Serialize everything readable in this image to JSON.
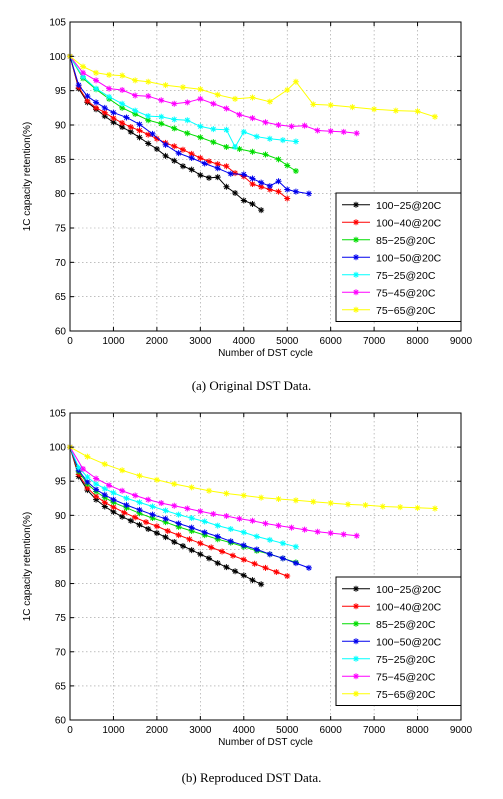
{
  "chart_data": [
    {
      "type": "line",
      "xlabel": "Number of DST cycle",
      "ylabel": "1C capacity retention(%)",
      "xlim": [
        0,
        9000
      ],
      "ylim": [
        60,
        105
      ],
      "xticks": [
        "0",
        "1000",
        "2000",
        "3000",
        "4000",
        "5000",
        "6000",
        "7000",
        "8000",
        "9000"
      ],
      "yticks": [
        "60",
        "65",
        "70",
        "75",
        "80",
        "85",
        "90",
        "95",
        "100",
        "105"
      ],
      "grid": true,
      "legend_position": "bottom-right",
      "marker": "star",
      "caption": "(a) Original DST Data.",
      "series": [
        {
          "name": "100−25@20C",
          "color": "#000000",
          "x": [
            0,
            200,
            400,
            600,
            800,
            1000,
            1200,
            1400,
            1600,
            1800,
            2000,
            2200,
            2400,
            2600,
            2800,
            3000,
            3200,
            3400,
            3600,
            3800,
            4000,
            4200,
            4400
          ],
          "y": [
            100,
            95.3,
            93.3,
            92.3,
            91.3,
            90.4,
            89.7,
            89.0,
            88.2,
            87.3,
            86.5,
            85.5,
            84.8,
            84.0,
            83.5,
            82.7,
            82.3,
            82.4,
            81.0,
            80.1,
            79.0,
            78.5,
            77.6
          ]
        },
        {
          "name": "100−40@20C",
          "color": "#ff0000",
          "x": [
            0,
            200,
            400,
            600,
            800,
            1000,
            1200,
            1400,
            1600,
            1800,
            2000,
            2200,
            2400,
            2600,
            2800,
            3000,
            3200,
            3400,
            3600,
            3800,
            4000,
            4200,
            4400,
            4600,
            4800,
            5000
          ],
          "y": [
            100,
            95.5,
            93.5,
            92.5,
            91.8,
            91.0,
            90.3,
            89.7,
            89.2,
            88.6,
            88.0,
            87.4,
            86.9,
            86.4,
            85.8,
            85.2,
            84.7,
            84.3,
            84.0,
            83.0,
            82.5,
            81.4,
            81.0,
            80.6,
            80.3,
            79.3
          ]
        },
        {
          "name": "85−25@20C",
          "color": "#00dd00",
          "x": [
            0,
            300,
            600,
            900,
            1200,
            1500,
            1800,
            2100,
            2400,
            2700,
            3000,
            3300,
            3600,
            3900,
            4200,
            4500,
            4800,
            5000,
            5200
          ],
          "y": [
            100,
            96.8,
            95.2,
            93.8,
            92.5,
            91.6,
            90.7,
            90.2,
            89.5,
            88.8,
            88.2,
            87.5,
            86.8,
            86.5,
            86.1,
            85.7,
            85.0,
            84.1,
            83.3
          ]
        },
        {
          "name": "100−50@20C",
          "color": "#0000ee",
          "x": [
            0,
            200,
            400,
            600,
            800,
            1000,
            1300,
            1600,
            1900,
            2200,
            2500,
            2800,
            3100,
            3400,
            3700,
            4000,
            4200,
            4400,
            4600,
            4800,
            5000,
            5200,
            5500
          ],
          "y": [
            100,
            95.8,
            94.2,
            93.3,
            92.5,
            91.8,
            91.1,
            90.1,
            88.7,
            87.1,
            85.9,
            85.2,
            84.4,
            83.7,
            82.9,
            82.8,
            82.2,
            81.6,
            81.1,
            81.8,
            80.6,
            80.3,
            80.0
          ]
        },
        {
          "name": "75−25@20C",
          "color": "#00ffff",
          "x": [
            0,
            300,
            600,
            900,
            1200,
            1500,
            1800,
            2100,
            2400,
            2700,
            3000,
            3300,
            3600,
            3800,
            4000,
            4300,
            4600,
            4900,
            5200
          ],
          "y": [
            100,
            97.0,
            95.3,
            94.1,
            93.1,
            92.1,
            91.3,
            91.2,
            90.8,
            90.7,
            89.8,
            89.4,
            89.3,
            86.8,
            89.0,
            88.3,
            88.0,
            87.8,
            87.6
          ]
        },
        {
          "name": "75−45@20C",
          "color": "#ff00ff",
          "x": [
            0,
            300,
            600,
            900,
            1200,
            1500,
            1800,
            2100,
            2400,
            2700,
            3000,
            3300,
            3600,
            3900,
            4200,
            4500,
            4800,
            5100,
            5400,
            5700,
            6000,
            6300,
            6600
          ],
          "y": [
            100,
            97.6,
            96.5,
            95.3,
            95.1,
            94.3,
            94.2,
            93.6,
            93.1,
            93.3,
            93.8,
            93.1,
            92.4,
            91.5,
            91.0,
            90.4,
            90.0,
            89.8,
            89.9,
            89.2,
            89.1,
            89.0,
            88.8
          ]
        },
        {
          "name": "75−65@20C",
          "color": "#ffff00",
          "x": [
            0,
            300,
            600,
            900,
            1200,
            1500,
            1800,
            2200,
            2600,
            3000,
            3400,
            3800,
            4200,
            4600,
            5000,
            5200,
            5600,
            6000,
            6500,
            7000,
            7500,
            8000,
            8400
          ],
          "y": [
            100,
            98.5,
            97.6,
            97.3,
            97.2,
            96.5,
            96.3,
            95.8,
            95.5,
            95.2,
            94.4,
            93.8,
            94.0,
            93.4,
            95.1,
            96.3,
            93.0,
            92.9,
            92.6,
            92.3,
            92.1,
            92.0,
            91.2
          ]
        }
      ]
    },
    {
      "type": "line",
      "xlabel": "Number of DST cycle",
      "ylabel": "1C capacity retention(%)",
      "xlim": [
        0,
        9000
      ],
      "ylim": [
        60,
        105
      ],
      "xticks": [
        "0",
        "1000",
        "2000",
        "3000",
        "4000",
        "5000",
        "6000",
        "7000",
        "8000",
        "9000"
      ],
      "yticks": [
        "60",
        "65",
        "70",
        "75",
        "80",
        "85",
        "90",
        "95",
        "100",
        "105"
      ],
      "grid": true,
      "legend_position": "bottom-right",
      "marker": "star",
      "caption": "(b) Reproduced DST Data.",
      "series": [
        {
          "name": "100−25@20C",
          "color": "#000000",
          "x": [
            0,
            200,
            400,
            600,
            800,
            1000,
            1200,
            1400,
            1600,
            1800,
            2000,
            2200,
            2400,
            2600,
            2800,
            3000,
            3200,
            3400,
            3600,
            3800,
            4000,
            4200,
            4400
          ],
          "y": [
            100,
            95.7,
            93.7,
            92.3,
            91.3,
            90.5,
            89.8,
            89.2,
            88.6,
            88.0,
            87.4,
            86.8,
            86.1,
            85.5,
            84.9,
            84.3,
            83.7,
            83.0,
            82.4,
            81.8,
            81.2,
            80.5,
            79.9
          ]
        },
        {
          "name": "100−40@20C",
          "color": "#ff0000",
          "x": [
            0,
            200,
            400,
            600,
            800,
            1000,
            1250,
            1500,
            1750,
            2000,
            2250,
            2500,
            2750,
            3000,
            3250,
            3500,
            3750,
            4000,
            4250,
            4500,
            4750,
            5000
          ],
          "y": [
            100,
            96.0,
            94.0,
            92.8,
            91.9,
            91.2,
            90.4,
            89.7,
            89.0,
            88.4,
            87.7,
            87.1,
            86.5,
            85.9,
            85.3,
            84.7,
            84.1,
            83.5,
            82.9,
            82.3,
            81.7,
            81.1
          ]
        },
        {
          "name": "85−25@20C",
          "color": "#00dd00",
          "x": [
            0,
            200,
            400,
            600,
            800,
            1000,
            1300,
            1600,
            1900,
            2200,
            2500,
            2800,
            3100,
            3400,
            3700,
            4000,
            4300,
            4600,
            4900,
            5200
          ],
          "y": [
            100,
            96.4,
            94.6,
            93.5,
            92.6,
            91.9,
            91.1,
            90.3,
            89.6,
            89.0,
            88.3,
            87.7,
            87.1,
            86.5,
            86.0,
            85.4,
            84.8,
            84.3,
            83.7,
            83.1
          ]
        },
        {
          "name": "100−50@20C",
          "color": "#0000ee",
          "x": [
            0,
            200,
            400,
            600,
            800,
            1000,
            1300,
            1600,
            1900,
            2200,
            2500,
            2800,
            3100,
            3400,
            3700,
            4000,
            4300,
            4600,
            4900,
            5200,
            5500
          ],
          "y": [
            100,
            96.6,
            94.9,
            93.8,
            93.0,
            92.3,
            91.5,
            90.8,
            90.1,
            89.5,
            88.8,
            88.2,
            87.5,
            86.9,
            86.2,
            85.6,
            85.0,
            84.3,
            83.7,
            83.0,
            82.3
          ]
        },
        {
          "name": "75−25@20C",
          "color": "#00ffff",
          "x": [
            0,
            200,
            400,
            600,
            800,
            1000,
            1300,
            1600,
            1900,
            2200,
            2500,
            2800,
            3100,
            3400,
            3700,
            4000,
            4300,
            4600,
            4900,
            5200
          ],
          "y": [
            100,
            97.0,
            95.6,
            94.6,
            93.9,
            93.3,
            92.5,
            91.9,
            91.3,
            90.7,
            90.1,
            89.6,
            89.1,
            88.5,
            88.0,
            87.5,
            86.9,
            86.4,
            85.9,
            85.4
          ]
        },
        {
          "name": "75−45@20C",
          "color": "#ff00ff",
          "x": [
            0,
            300,
            600,
            900,
            1200,
            1500,
            1800,
            2100,
            2400,
            2700,
            3000,
            3300,
            3600,
            3900,
            4200,
            4500,
            4800,
            5100,
            5400,
            5700,
            6000,
            6300,
            6600
          ],
          "y": [
            100,
            96.8,
            95.4,
            94.4,
            93.6,
            92.9,
            92.3,
            91.8,
            91.4,
            91.0,
            90.6,
            90.2,
            89.9,
            89.5,
            89.2,
            88.8,
            88.5,
            88.2,
            87.9,
            87.6,
            87.4,
            87.2,
            87.0
          ]
        },
        {
          "name": "75−65@20C",
          "color": "#ffff00",
          "x": [
            0,
            400,
            800,
            1200,
            1600,
            2000,
            2400,
            2800,
            3200,
            3600,
            4000,
            4400,
            4800,
            5200,
            5600,
            6000,
            6400,
            6800,
            7200,
            7600,
            8000,
            8400
          ],
          "y": [
            100,
            98.6,
            97.5,
            96.6,
            95.8,
            95.2,
            94.6,
            94.1,
            93.6,
            93.2,
            92.9,
            92.6,
            92.4,
            92.2,
            92.0,
            91.8,
            91.6,
            91.5,
            91.3,
            91.2,
            91.1,
            91.0
          ]
        }
      ]
    }
  ]
}
